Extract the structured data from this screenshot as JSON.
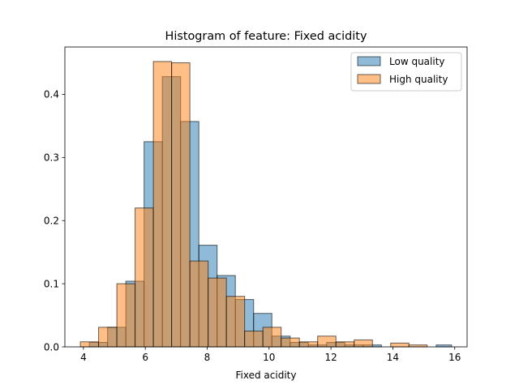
{
  "chart_data": {
    "type": "bar",
    "title": "Histogram of feature: Fixed acidity",
    "xlabel": "Fixed acidity",
    "ylabel": "",
    "xlim": [
      3.4,
      16.4
    ],
    "ylim": [
      0,
      0.475
    ],
    "xticks": [
      4,
      6,
      8,
      10,
      12,
      14,
      16
    ],
    "xtick_labels": [
      "4",
      "6",
      "8",
      "10",
      "12",
      "14",
      "16"
    ],
    "yticks": [
      0.0,
      0.1,
      0.2,
      0.3,
      0.4
    ],
    "ytick_labels": [
      "0.0",
      "0.1",
      "0.2",
      "0.3",
      "0.4"
    ],
    "grid": false,
    "legend_position": "top-right",
    "series": [
      {
        "name": "Low quality",
        "color": "#1f77b4",
        "bin_edges": [
          4.19,
          4.78,
          5.37,
          5.96,
          6.55,
          7.14,
          7.73,
          8.32,
          8.91,
          9.5,
          10.09,
          10.68,
          11.27,
          11.86,
          12.45,
          13.04,
          13.63,
          14.22,
          14.81,
          15.4,
          15.9
        ],
        "values": [
          0.007,
          0.031,
          0.104,
          0.325,
          0.428,
          0.357,
          0.161,
          0.113,
          0.075,
          0.053,
          0.017,
          0.007,
          0.003,
          0.007,
          0.003,
          0.003,
          0.0,
          0.0,
          0.0,
          0.003
        ]
      },
      {
        "name": "High quality",
        "color": "#ff7f0e",
        "bin_edges": [
          3.9,
          4.49,
          5.08,
          5.67,
          6.26,
          6.85,
          7.44,
          8.03,
          8.62,
          9.21,
          9.8,
          10.39,
          10.98,
          11.57,
          12.16,
          12.75,
          13.34,
          13.93,
          14.52,
          15.11,
          15.7
        ],
        "values": [
          0.008,
          0.031,
          0.1,
          0.22,
          0.452,
          0.45,
          0.136,
          0.109,
          0.08,
          0.025,
          0.031,
          0.014,
          0.008,
          0.017,
          0.008,
          0.011,
          0.0,
          0.006,
          0.003,
          0.0
        ]
      }
    ]
  }
}
